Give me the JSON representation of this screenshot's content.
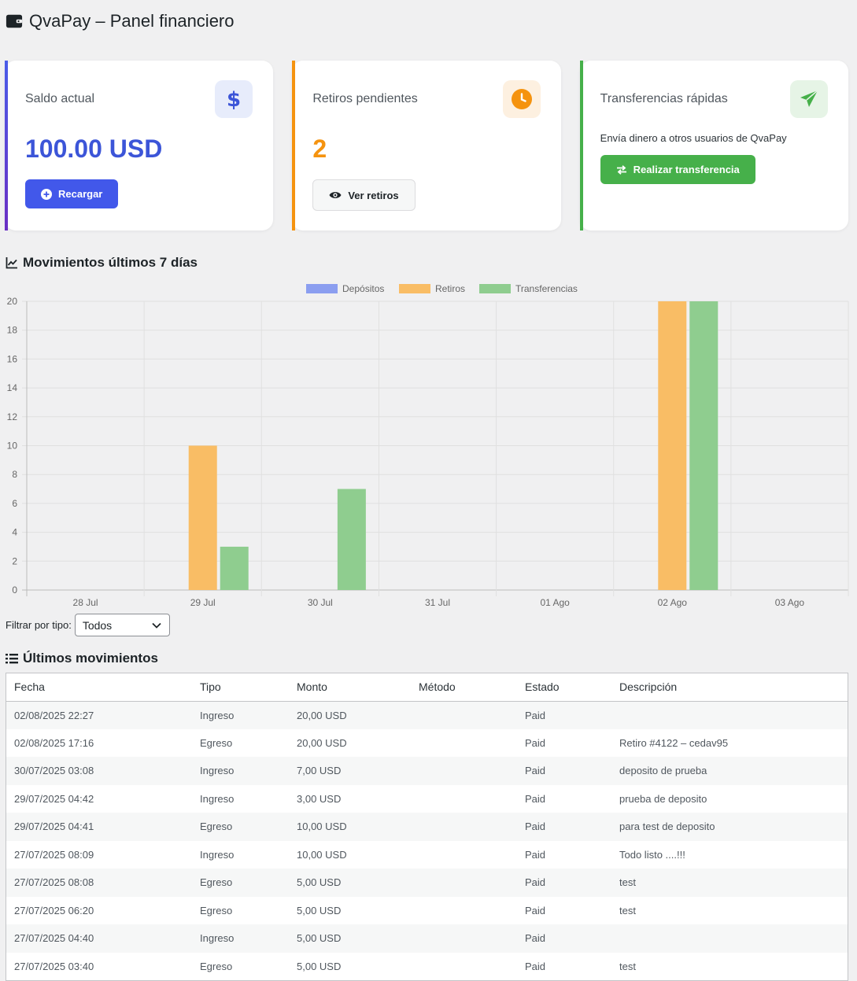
{
  "header": {
    "title": "QvaPay – Panel financiero",
    "icon": "wallet-icon"
  },
  "cards": {
    "saldo": {
      "label": "Saldo actual",
      "value": "100.00 USD",
      "icon": "dollar-icon",
      "button_label": "Recargar"
    },
    "retiros": {
      "label": "Retiros pendientes",
      "value": "2",
      "icon": "clock-icon",
      "button_label": "Ver retiros"
    },
    "transfer": {
      "label": "Transferencias rápidas",
      "description": "Envía dinero a otros usuarios de QvaPay",
      "icon": "paper-plane-icon",
      "button_label": "Realizar transferencia"
    }
  },
  "chart_section": {
    "title": "Movimientos últimos 7 días"
  },
  "chart_data": {
    "type": "bar",
    "categories": [
      "28 Jul",
      "29 Jul",
      "30 Jul",
      "31 Jul",
      "01 Ago",
      "02 Ago",
      "03 Ago"
    ],
    "series": [
      {
        "name": "Depósitos",
        "color": "#8b9ef0",
        "values": [
          0,
          0,
          0,
          0,
          0,
          0,
          0
        ]
      },
      {
        "name": "Retiros",
        "color": "#f9bd65",
        "values": [
          0,
          10,
          0,
          0,
          0,
          20,
          0
        ]
      },
      {
        "name": "Transferencias",
        "color": "#8fcd8f",
        "values": [
          0,
          3,
          7,
          0,
          0,
          20,
          0
        ]
      }
    ],
    "yticks": [
      "0",
      "2",
      "4",
      "6",
      "8",
      "10",
      "12",
      "14",
      "16",
      "18",
      "20"
    ],
    "ylim": [
      0,
      20
    ],
    "grid": true,
    "legend": "top-center"
  },
  "filter": {
    "label": "Filtrar por tipo:",
    "selected": "Todos"
  },
  "movements": {
    "title": "Últimos movimientos",
    "columns": [
      "Fecha",
      "Tipo",
      "Monto",
      "Método",
      "Estado",
      "Descripción"
    ],
    "rows": [
      [
        "02/08/2025 22:27",
        "Ingreso",
        "20,00 USD",
        "",
        "Paid",
        ""
      ],
      [
        "02/08/2025 17:16",
        "Egreso",
        "20,00 USD",
        "",
        "Paid",
        "Retiro #4122 – cedav95"
      ],
      [
        "30/07/2025 03:08",
        "Ingreso",
        "7,00 USD",
        "",
        "Paid",
        "deposito de prueba"
      ],
      [
        "29/07/2025 04:42",
        "Ingreso",
        "3,00 USD",
        "",
        "Paid",
        "prueba de deposito"
      ],
      [
        "29/07/2025 04:41",
        "Egreso",
        "10,00 USD",
        "",
        "Paid",
        "para test de deposito"
      ],
      [
        "27/07/2025 08:09",
        "Ingreso",
        "10,00 USD",
        "",
        "Paid",
        "Todo listo ....!!!"
      ],
      [
        "27/07/2025 08:08",
        "Egreso",
        "5,00 USD",
        "",
        "Paid",
        "test"
      ],
      [
        "27/07/2025 06:20",
        "Egreso",
        "5,00 USD",
        "",
        "Paid",
        "test"
      ],
      [
        "27/07/2025 04:40",
        "Ingreso",
        "5,00 USD",
        "",
        "Paid",
        ""
      ],
      [
        "27/07/2025 03:40",
        "Egreso",
        "5,00 USD",
        "",
        "Paid",
        "test"
      ]
    ]
  }
}
